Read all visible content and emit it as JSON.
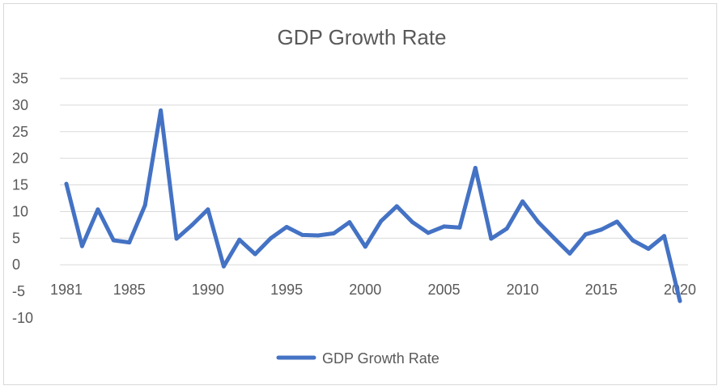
{
  "chart_data": {
    "type": "line",
    "title": "GDP Growth Rate",
    "xlabel": "",
    "ylabel": "",
    "x": [
      1981,
      1982,
      1983,
      1984,
      1985,
      1986,
      1987,
      1988,
      1989,
      1990,
      1991,
      1992,
      1993,
      1994,
      1995,
      1996,
      1997,
      1998,
      1999,
      2000,
      2001,
      2002,
      2003,
      2004,
      2005,
      2006,
      2007,
      2008,
      2009,
      2010,
      2011,
      2012,
      2013,
      2014,
      2015,
      2016,
      2017,
      2018,
      2019,
      2020
    ],
    "x_tick_labels": [
      "1981",
      "1985",
      "1990",
      "1995",
      "2000",
      "2005",
      "2010",
      "2015",
      "2020"
    ],
    "y_tick_labels": [
      "35",
      "30",
      "25",
      "20",
      "15",
      "10",
      "5",
      "0",
      "-5",
      "-10"
    ],
    "y_ticks": [
      35,
      30,
      25,
      20,
      15,
      10,
      5,
      0,
      -5,
      -10
    ],
    "ylim": [
      -10,
      35
    ],
    "grid": true,
    "legend_position": "bottom",
    "series": [
      {
        "name": "GDP Growth Rate",
        "color": "#4472c4",
        "values": [
          15.2,
          3.5,
          10.4,
          4.6,
          4.2,
          11.2,
          29.0,
          4.9,
          7.5,
          10.4,
          -0.3,
          4.7,
          2.0,
          5.0,
          7.1,
          5.6,
          5.5,
          5.9,
          8.0,
          3.4,
          8.2,
          11.0,
          8.0,
          6.0,
          7.2,
          7.0,
          18.2,
          4.9,
          6.8,
          11.9,
          8.0,
          5.0,
          2.1,
          5.7,
          6.6,
          8.1,
          4.6,
          3.0,
          5.4,
          -6.8
        ]
      }
    ]
  }
}
